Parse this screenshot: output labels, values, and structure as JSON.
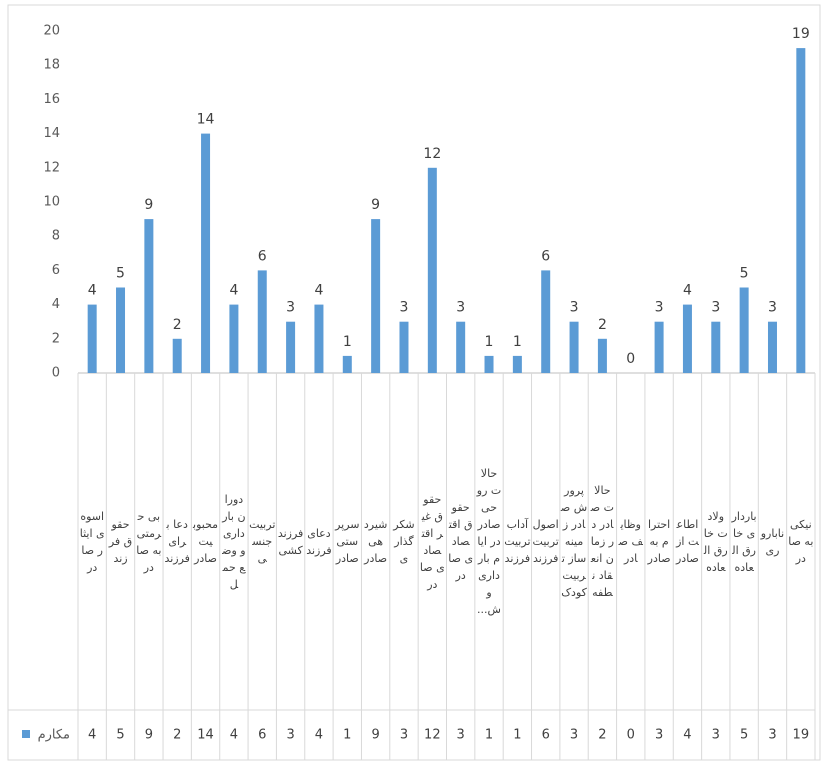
{
  "chart_data": {
    "type": "bar",
    "categories": [
      "اسوه ی ایثار صادر",
      "حقوق فرزند",
      "بی حرمتی به صادر",
      "دعا برای فرزند",
      "محبوبیت صادر",
      "دوران بارداری و وضع حمل",
      "تربیت جنسی",
      "فرزند کشی",
      "دعای فرزند",
      "سرپرستی صادر",
      "شیردهی صادر",
      "شکرگذاری",
      "حقوق غیر اقتصادی صادر",
      "حقوق اقتصادی صادر",
      "حالات روحی صادر در ایام بارداری و ش...",
      "آداب تربیت فرزند",
      "اصول تربیت فرزند",
      "پرورش صادر زمینه ساز تربیت کودک",
      "حالات صادر در زمان انعقاد نطفه",
      "وظایف صادر",
      "احترام به صادر",
      "اطاعت از صادر",
      "ولادت خارق العاده",
      "بارداری خارق العاده",
      "ناباروری",
      "نیکی به صادر"
    ],
    "series": [
      {
        "name": "مکارم",
        "color": "#5b9bd5",
        "values": [
          4,
          5,
          9,
          2,
          14,
          4,
          6,
          3,
          4,
          1,
          9,
          3,
          12,
          3,
          1,
          1,
          6,
          3,
          2,
          0,
          3,
          4,
          3,
          5,
          3,
          19
        ]
      }
    ],
    "ylim": [
      0,
      20
    ],
    "yticks": [
      0,
      2,
      4,
      6,
      8,
      10,
      12,
      14,
      16,
      18,
      20
    ],
    "data_table": true
  }
}
